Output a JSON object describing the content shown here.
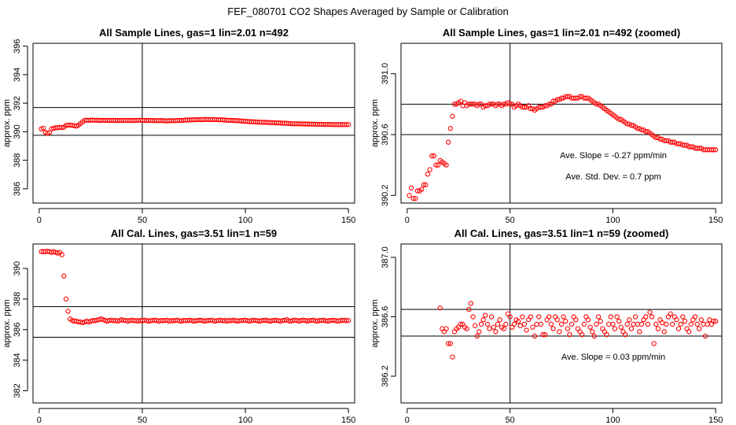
{
  "figure": {
    "title": "FEF_080701  CO2 Shapes Averaged by Sample or Calibration"
  },
  "chart_data": [
    {
      "type": "scatter",
      "title": "All Sample Lines, gas=1 lin=2.01 n=492",
      "xlabel": "",
      "ylabel": "approx. ppm",
      "xlim": [
        -3,
        153
      ],
      "ylim": [
        385,
        396.2
      ],
      "xticks": [
        0,
        50,
        100,
        150
      ],
      "yticks": [
        386,
        388,
        390,
        392,
        394,
        396
      ],
      "vlines": [
        50
      ],
      "hlines": [
        389.75,
        391.7
      ],
      "annotations": [],
      "x": [
        1,
        2,
        3,
        4,
        5,
        6,
        7,
        8,
        9,
        10,
        11,
        12,
        13,
        14,
        15,
        16,
        17,
        18,
        19,
        20,
        21,
        22,
        23,
        24,
        25,
        26,
        27,
        28,
        29,
        30,
        31,
        32,
        33,
        34,
        35,
        36,
        37,
        38,
        39,
        40,
        41,
        42,
        43,
        44,
        45,
        46,
        47,
        48,
        49,
        50,
        51,
        52,
        53,
        54,
        55,
        56,
        57,
        58,
        59,
        60,
        61,
        62,
        63,
        64,
        65,
        66,
        67,
        68,
        69,
        70,
        71,
        72,
        73,
        74,
        75,
        76,
        77,
        78,
        79,
        80,
        81,
        82,
        83,
        84,
        85,
        86,
        87,
        88,
        89,
        90,
        91,
        92,
        93,
        94,
        95,
        96,
        97,
        98,
        99,
        100,
        101,
        102,
        103,
        104,
        105,
        106,
        107,
        108,
        109,
        110,
        111,
        112,
        113,
        114,
        115,
        116,
        117,
        118,
        119,
        120,
        121,
        122,
        123,
        124,
        125,
        126,
        127,
        128,
        129,
        130,
        131,
        132,
        133,
        134,
        135,
        136,
        137,
        138,
        139,
        140,
        141,
        142,
        143,
        144,
        145,
        146,
        147,
        148,
        149,
        150
      ],
      "y": [
        390.2,
        390.25,
        389.95,
        389.88,
        389.95,
        390.2,
        390.24,
        390.28,
        390.28,
        390.31,
        390.29,
        390.32,
        390.44,
        390.46,
        390.47,
        390.45,
        390.42,
        390.39,
        390.46,
        390.57,
        390.69,
        390.8,
        390.81,
        390.8,
        390.81,
        390.82,
        390.8,
        390.81,
        390.79,
        390.8,
        390.8,
        390.8,
        390.8,
        390.79,
        390.8,
        390.8,
        390.79,
        390.79,
        390.79,
        390.8,
        390.79,
        390.8,
        390.79,
        390.79,
        390.8,
        390.79,
        390.8,
        390.8,
        390.81,
        390.8,
        390.8,
        390.79,
        390.79,
        390.8,
        390.79,
        390.78,
        390.78,
        390.78,
        390.79,
        390.78,
        390.77,
        390.76,
        390.77,
        390.78,
        390.78,
        390.78,
        390.79,
        390.79,
        390.8,
        390.8,
        390.82,
        390.82,
        390.83,
        390.83,
        390.84,
        390.84,
        390.85,
        390.85,
        390.85,
        390.86,
        390.86,
        390.86,
        390.85,
        390.86,
        390.85,
        390.85,
        390.84,
        390.84,
        390.83,
        390.82,
        390.81,
        390.8,
        390.8,
        390.79,
        390.78,
        390.78,
        390.77,
        390.76,
        390.74,
        390.73,
        390.72,
        390.71,
        390.7,
        390.7,
        390.69,
        390.68,
        390.67,
        390.67,
        390.66,
        390.66,
        390.65,
        390.64,
        390.64,
        390.63,
        390.62,
        390.62,
        390.61,
        390.6,
        390.6,
        390.59,
        390.58,
        390.57,
        390.56,
        390.56,
        390.56,
        390.55,
        390.55,
        390.55,
        390.54,
        390.54,
        390.54,
        390.53,
        390.53,
        390.53,
        390.52,
        390.52,
        390.52,
        390.51,
        390.51,
        390.51,
        390.51,
        390.5,
        390.5,
        390.5,
        390.5,
        390.5,
        390.5,
        390.5,
        390.5,
        390.5
      ]
    },
    {
      "type": "scatter",
      "title": "All Sample Lines, gas=1 lin=2.01 n=492 (zoomed)",
      "xlabel": "",
      "ylabel": "approx. ppm",
      "xlim": [
        -3,
        153
      ],
      "ylim": [
        390.15,
        391.2
      ],
      "xticks": [
        0,
        50,
        100,
        150
      ],
      "yticks": [
        390.2,
        390.6,
        391.0
      ],
      "ytick_labels": [
        "390.2",
        "390.6",
        "391.0"
      ],
      "vlines": [
        50
      ],
      "hlines": [
        390.6,
        390.8
      ],
      "annotations": [
        "Ave. Slope =  -0.27  ppm/min",
        "Ave. Std. Dev. =  0.7  ppm"
      ],
      "x": [
        1,
        2,
        3,
        4,
        5,
        6,
        7,
        8,
        9,
        10,
        11,
        12,
        13,
        14,
        15,
        16,
        17,
        18,
        19,
        20,
        21,
        22,
        23,
        24,
        25,
        26,
        27,
        28,
        29,
        30,
        31,
        32,
        33,
        34,
        35,
        36,
        37,
        38,
        39,
        40,
        41,
        42,
        43,
        44,
        45,
        46,
        47,
        48,
        49,
        50,
        51,
        52,
        53,
        54,
        55,
        56,
        57,
        58,
        59,
        60,
        61,
        62,
        63,
        64,
        65,
        66,
        67,
        68,
        69,
        70,
        71,
        72,
        73,
        74,
        75,
        76,
        77,
        78,
        79,
        80,
        81,
        82,
        83,
        84,
        85,
        86,
        87,
        88,
        89,
        90,
        91,
        92,
        93,
        94,
        95,
        96,
        97,
        98,
        99,
        100,
        101,
        102,
        103,
        104,
        105,
        106,
        107,
        108,
        109,
        110,
        111,
        112,
        113,
        114,
        115,
        116,
        117,
        118,
        119,
        120,
        121,
        122,
        123,
        124,
        125,
        126,
        127,
        128,
        129,
        130,
        131,
        132,
        133,
        134,
        135,
        136,
        137,
        138,
        139,
        140,
        141,
        142,
        143,
        144,
        145,
        146,
        147,
        148,
        149,
        150
      ],
      "y": [
        390.2,
        390.25,
        390.18,
        390.18,
        390.23,
        390.23,
        390.24,
        390.27,
        390.27,
        390.34,
        390.37,
        390.46,
        390.46,
        390.4,
        390.4,
        390.43,
        390.42,
        390.41,
        390.4,
        390.55,
        390.64,
        390.72,
        390.8,
        390.8,
        390.81,
        390.82,
        390.79,
        390.81,
        390.79,
        390.8,
        390.8,
        390.8,
        390.8,
        390.79,
        390.8,
        390.8,
        390.78,
        390.79,
        390.79,
        390.8,
        390.8,
        390.8,
        390.79,
        390.8,
        390.8,
        390.79,
        390.8,
        390.8,
        390.81,
        390.8,
        390.8,
        390.78,
        390.79,
        390.8,
        390.79,
        390.78,
        390.78,
        390.78,
        390.79,
        390.77,
        390.77,
        390.76,
        390.77,
        390.78,
        390.78,
        390.78,
        390.79,
        390.79,
        390.8,
        390.8,
        390.82,
        390.82,
        390.83,
        390.83,
        390.84,
        390.84,
        390.85,
        390.85,
        390.85,
        390.84,
        390.84,
        390.84,
        390.84,
        390.85,
        390.85,
        390.84,
        390.84,
        390.84,
        390.83,
        390.82,
        390.81,
        390.8,
        390.8,
        390.79,
        390.78,
        390.77,
        390.76,
        390.75,
        390.74,
        390.73,
        390.72,
        390.71,
        390.7,
        390.7,
        390.69,
        390.68,
        390.67,
        390.67,
        390.66,
        390.66,
        390.65,
        390.64,
        390.64,
        390.63,
        390.63,
        390.62,
        390.62,
        390.61,
        390.6,
        390.59,
        390.58,
        390.58,
        390.57,
        390.57,
        390.56,
        390.56,
        390.56,
        390.55,
        390.55,
        390.55,
        390.54,
        390.54,
        390.54,
        390.53,
        390.53,
        390.53,
        390.52,
        390.52,
        390.52,
        390.51,
        390.51,
        390.51,
        390.51,
        390.5,
        390.5,
        390.5,
        390.5,
        390.5,
        390.5,
        390.5
      ]
    },
    {
      "type": "scatter",
      "title": "All Cal. Lines, gas=3.51 lin=1 n=59",
      "xlabel": "",
      "ylabel": "approx. ppm",
      "xlim": [
        -3,
        153
      ],
      "ylim": [
        381.2,
        391.6
      ],
      "xticks": [
        0,
        50,
        100,
        150
      ],
      "yticks": [
        382,
        384,
        386,
        388,
        390
      ],
      "vlines": [
        50
      ],
      "hlines": [
        385.5,
        387.5
      ],
      "annotations": [],
      "x": [
        1,
        2,
        3,
        4,
        5,
        6,
        7,
        8,
        9,
        10,
        11,
        12,
        13,
        14,
        15,
        16,
        17,
        18,
        19,
        20,
        21,
        22,
        23,
        24,
        25,
        26,
        27,
        28,
        29,
        30,
        31,
        32,
        33,
        34,
        35,
        36,
        37,
        38,
        39,
        40,
        41,
        42,
        43,
        44,
        45,
        46,
        47,
        48,
        49,
        50,
        51,
        52,
        53,
        54,
        55,
        56,
        57,
        58,
        59,
        60,
        61,
        62,
        63,
        64,
        65,
        66,
        67,
        68,
        69,
        70,
        71,
        72,
        73,
        74,
        75,
        76,
        77,
        78,
        79,
        80,
        81,
        82,
        83,
        84,
        85,
        86,
        87,
        88,
        89,
        90,
        91,
        92,
        93,
        94,
        95,
        96,
        97,
        98,
        99,
        100,
        101,
        102,
        103,
        104,
        105,
        106,
        107,
        108,
        109,
        110,
        111,
        112,
        113,
        114,
        115,
        116,
        117,
        118,
        119,
        120,
        121,
        122,
        123,
        124,
        125,
        126,
        127,
        128,
        129,
        130,
        131,
        132,
        133,
        134,
        135,
        136,
        137,
        138,
        139,
        140,
        141,
        142,
        143,
        144,
        145,
        146,
        147,
        148,
        149,
        150
      ],
      "y": [
        391.1,
        391.1,
        391.1,
        391.12,
        391.1,
        391.05,
        391.1,
        391.05,
        391.0,
        391.05,
        390.9,
        389.5,
        388.0,
        387.2,
        386.7,
        386.6,
        386.55,
        386.55,
        386.5,
        386.5,
        386.45,
        386.5,
        386.55,
        386.5,
        386.55,
        386.6,
        386.58,
        386.62,
        386.65,
        386.7,
        386.65,
        386.6,
        386.55,
        386.6,
        386.62,
        386.58,
        386.6,
        386.55,
        386.6,
        386.65,
        386.6,
        386.6,
        386.55,
        386.6,
        386.62,
        386.58,
        386.6,
        386.55,
        386.6,
        386.58,
        386.62,
        386.6,
        386.55,
        386.58,
        386.6,
        386.62,
        386.6,
        386.55,
        386.6,
        386.58,
        386.6,
        386.62,
        386.55,
        386.6,
        386.58,
        386.6,
        386.62,
        386.58,
        386.55,
        386.6,
        386.6,
        386.58,
        386.62,
        386.6,
        386.55,
        386.58,
        386.6,
        386.62,
        386.6,
        386.55,
        386.58,
        386.6,
        386.6,
        386.62,
        386.55,
        386.58,
        386.6,
        386.62,
        386.58,
        386.6,
        386.55,
        386.6,
        386.58,
        386.62,
        386.6,
        386.55,
        386.58,
        386.6,
        386.6,
        386.62,
        386.58,
        386.55,
        386.6,
        386.62,
        386.6,
        386.58,
        386.55,
        386.6,
        386.6,
        386.62,
        386.58,
        386.55,
        386.6,
        386.6,
        386.62,
        386.58,
        386.55,
        386.6,
        386.6,
        386.65,
        386.58,
        386.55,
        386.6,
        386.62,
        386.6,
        386.55,
        386.6,
        386.62,
        386.6,
        386.55,
        386.6,
        386.6,
        386.62,
        386.58,
        386.55,
        386.6,
        386.6,
        386.62,
        386.58,
        386.55,
        386.6,
        386.6,
        386.62,
        386.58,
        386.55,
        386.6,
        386.6,
        386.62,
        386.58,
        386.6
      ]
    },
    {
      "type": "scatter",
      "title": "All Cal. Lines, gas=3.51 lin=1 n=59 (zoomed)",
      "xlabel": "",
      "ylabel": "approx. ppm",
      "xlim": [
        -3,
        153
      ],
      "ylim": [
        386.02,
        387.09
      ],
      "xticks": [
        0,
        50,
        100,
        150
      ],
      "yticks": [
        386.2,
        386.6,
        387.0
      ],
      "ytick_labels": [
        "386.2",
        "386.6",
        "387.0"
      ],
      "vlines": [
        50
      ],
      "hlines": [
        386.47,
        386.65
      ],
      "annotations": [
        "Ave. Slope =  0.03  ppm/min"
      ],
      "x": [
        16,
        17,
        18,
        19,
        20,
        21,
        22,
        23,
        24,
        25,
        26,
        27,
        28,
        29,
        30,
        31,
        32,
        33,
        34,
        35,
        36,
        37,
        38,
        39,
        40,
        41,
        42,
        43,
        44,
        45,
        46,
        47,
        48,
        49,
        50,
        51,
        52,
        53,
        54,
        55,
        56,
        57,
        58,
        59,
        60,
        61,
        62,
        63,
        64,
        65,
        66,
        67,
        68,
        69,
        70,
        71,
        72,
        73,
        74,
        75,
        76,
        77,
        78,
        79,
        80,
        81,
        82,
        83,
        84,
        85,
        86,
        87,
        88,
        89,
        90,
        91,
        92,
        93,
        94,
        95,
        96,
        97,
        98,
        99,
        100,
        101,
        102,
        103,
        104,
        105,
        106,
        107,
        108,
        109,
        110,
        111,
        112,
        113,
        114,
        115,
        116,
        117,
        118,
        119,
        120,
        121,
        122,
        123,
        124,
        125,
        126,
        127,
        128,
        129,
        130,
        131,
        132,
        133,
        134,
        135,
        136,
        137,
        138,
        139,
        140,
        141,
        142,
        143,
        144,
        145,
        146,
        147,
        148,
        149,
        150
      ],
      "y": [
        386.66,
        386.52,
        386.5,
        386.52,
        386.42,
        386.42,
        386.33,
        386.5,
        386.52,
        386.53,
        386.55,
        386.55,
        386.53,
        386.52,
        386.65,
        386.69,
        386.6,
        386.54,
        386.47,
        386.5,
        386.55,
        386.58,
        386.61,
        386.55,
        386.52,
        386.6,
        386.53,
        386.5,
        386.55,
        386.58,
        386.53,
        386.52,
        386.55,
        386.62,
        386.6,
        386.53,
        386.55,
        386.58,
        386.57,
        386.54,
        386.6,
        386.55,
        386.51,
        386.58,
        386.6,
        386.53,
        386.47,
        386.55,
        386.6,
        386.55,
        386.48,
        386.48,
        386.58,
        386.6,
        386.55,
        386.52,
        386.6,
        386.58,
        386.5,
        386.55,
        386.6,
        386.57,
        386.52,
        386.48,
        386.55,
        386.6,
        386.58,
        386.52,
        386.5,
        386.48,
        386.55,
        386.6,
        386.58,
        386.53,
        386.5,
        386.47,
        386.55,
        386.6,
        386.57,
        386.52,
        386.5,
        386.48,
        386.55,
        386.6,
        386.55,
        386.52,
        386.6,
        386.57,
        386.53,
        386.5,
        386.48,
        386.55,
        386.58,
        386.52,
        386.55,
        386.6,
        386.55,
        386.5,
        386.55,
        386.58,
        386.6,
        386.55,
        386.63,
        386.6,
        386.42,
        386.55,
        386.52,
        386.58,
        386.56,
        386.5,
        386.55,
        386.6,
        386.62,
        386.55,
        386.6,
        386.58,
        386.52,
        386.55,
        386.6,
        386.57,
        386.52,
        386.5,
        386.55,
        386.58,
        386.6,
        386.55,
        386.52,
        386.58,
        386.55,
        386.47,
        386.55,
        386.58,
        386.55,
        386.57,
        386.57
      ]
    }
  ]
}
